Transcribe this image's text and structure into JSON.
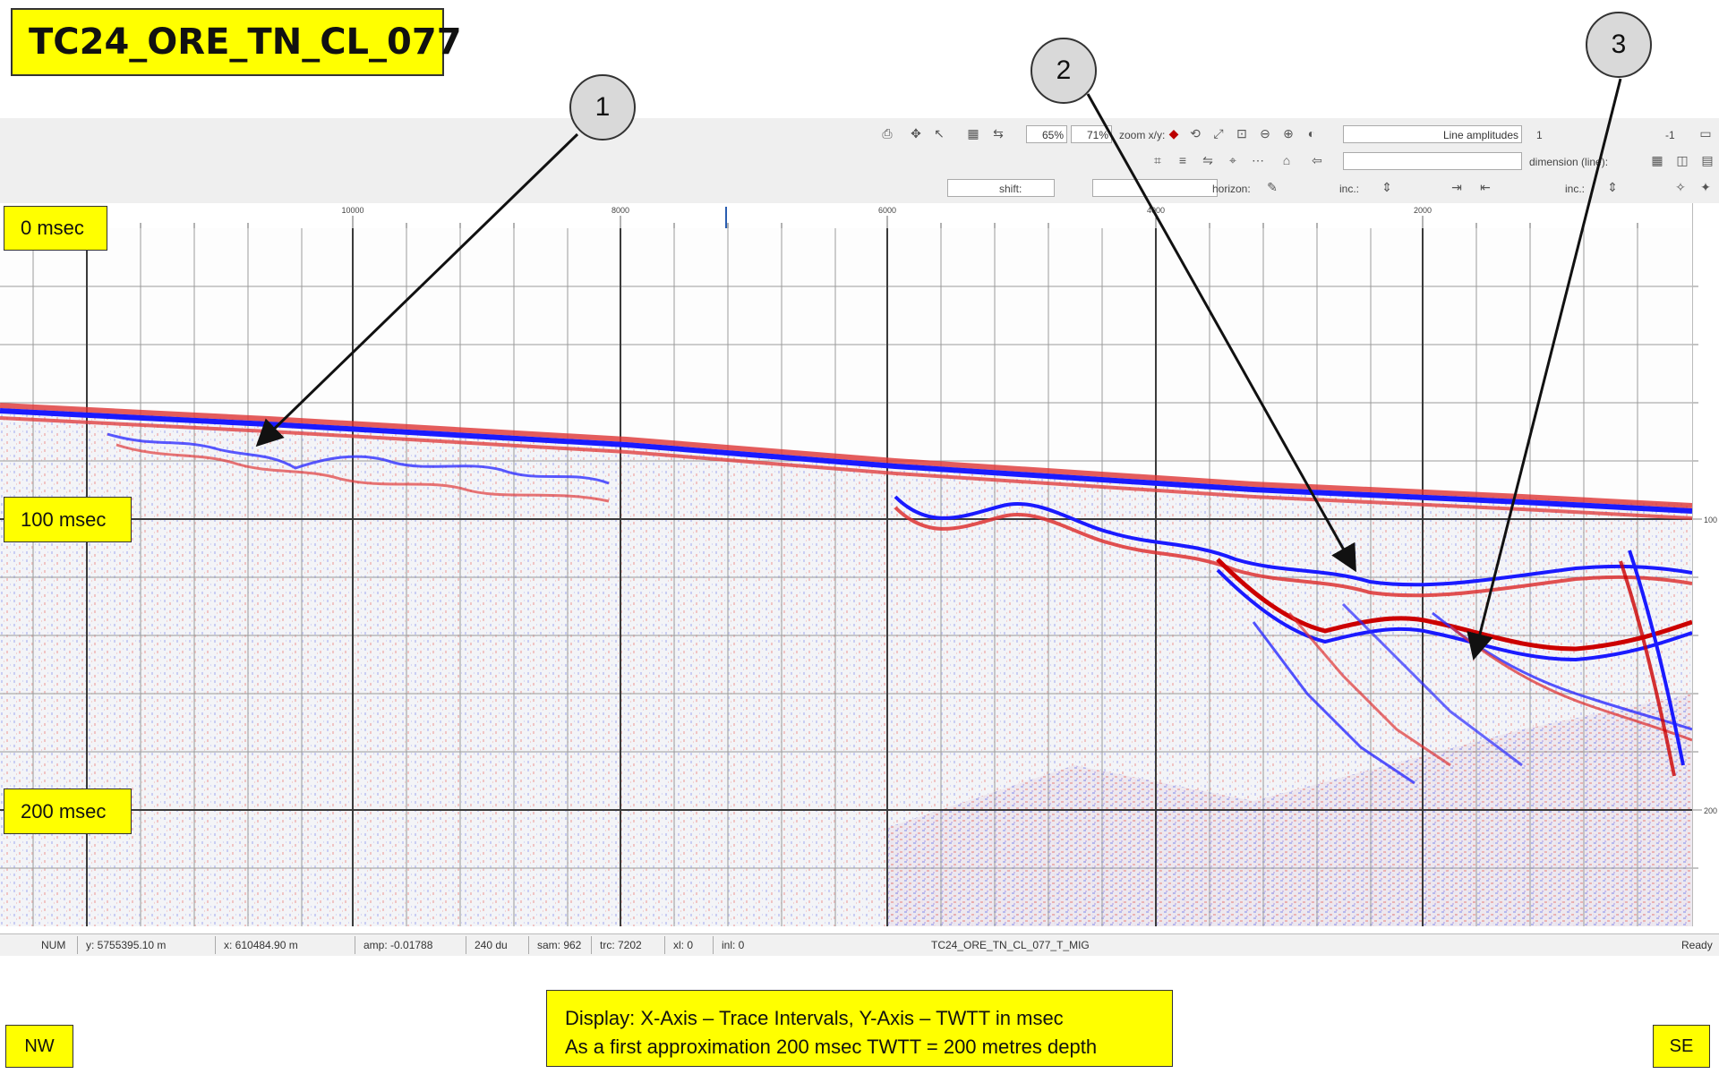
{
  "title": "TC24_ORE_TN_CL_077",
  "toolbar": {
    "row1": {
      "color_min": "-1",
      "color_max": "1",
      "colormap_label": "Line amplitudes",
      "zoom_label": "zoom x/y:",
      "zoom_x": "71%",
      "zoom_y": "65%"
    },
    "row2": {
      "dimension_label": "dimension (line):"
    },
    "row3": {
      "inc_label_1": "inc.:",
      "inc_label_2": "inc.:",
      "horizon_label": "horizon:",
      "shift_label": "shift:"
    }
  },
  "ruler": {
    "ticks": [
      "10000",
      "8000",
      "6000",
      "4000",
      "2000"
    ]
  },
  "right_scale": {
    "ticks": [
      "100",
      "200"
    ]
  },
  "time_labels": [
    "0 msec",
    "100 msec",
    "200 msec"
  ],
  "callouts": [
    "1",
    "2",
    "3"
  ],
  "statusbar": {
    "ready": "Ready",
    "file": "TC24_ORE_TN_CL_077_T_MIG",
    "inl": "inl: 0",
    "xl": "xl: 0",
    "trc": "trc: 7202",
    "sam": "sam: 962",
    "du": "240 du",
    "amp": "amp: -0.01788",
    "x": "x: 610484.90 m",
    "y": "y: 5755395.10 m",
    "num": "NUM"
  },
  "caption": {
    "line1": "Display: X-Axis – Trace Intervals, Y-Axis – TWTT in msec",
    "line2": "As a first approximation 200 msec TWTT = 200 metres depth"
  },
  "directions": {
    "left": "NW",
    "right": "SE"
  }
}
